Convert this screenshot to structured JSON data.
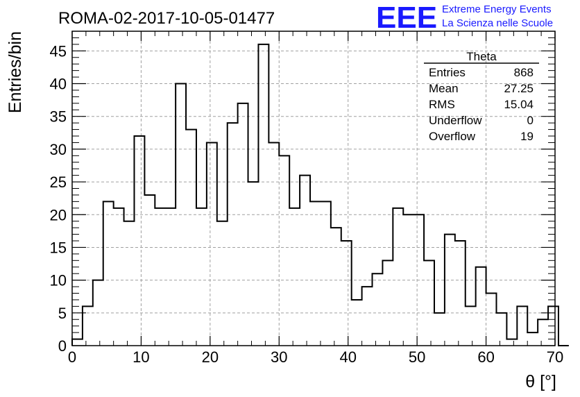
{
  "header": {
    "title": "ROMA-02-2017-10-05-01477",
    "logo_text": "EEE",
    "logo_line1": "Extreme Energy Events",
    "logo_line2": "La Scienza nelle Scuole"
  },
  "colors": {
    "logo": "#1a1aff",
    "histogram": "#000000",
    "grid": "#a0a0a0",
    "background": "#ffffff"
  },
  "stats": {
    "name": "Theta",
    "rows": [
      {
        "label": "Entries",
        "value": "868"
      },
      {
        "label": "Mean",
        "value": "27.25"
      },
      {
        "label": "RMS",
        "value": "15.04"
      },
      {
        "label": "Underflow",
        "value": "0"
      },
      {
        "label": "Overflow",
        "value": "19"
      }
    ]
  },
  "chart_data": {
    "type": "histogram",
    "title": "ROMA-02-2017-10-05-01477",
    "xlabel": "θ [°]",
    "ylabel": "Entries/bin",
    "xlim": [
      0,
      70
    ],
    "ylim": [
      0,
      48
    ],
    "x_ticks": [
      0,
      10,
      20,
      30,
      40,
      50,
      60,
      70
    ],
    "y_ticks": [
      0,
      5,
      10,
      15,
      20,
      25,
      30,
      35,
      40,
      45
    ],
    "grid": true,
    "bin_width": 1.5,
    "bin_start": 0,
    "values": [
      1,
      6,
      10,
      22,
      21,
      19,
      32,
      23,
      21,
      21,
      40,
      33,
      21,
      31,
      19,
      34,
      37,
      25,
      46,
      31,
      29,
      21,
      26,
      22,
      22,
      18,
      16,
      7,
      9,
      11,
      13,
      21,
      20,
      20,
      13,
      5,
      17,
      16,
      6,
      12,
      8,
      5,
      1,
      6,
      2,
      4,
      6,
      0
    ]
  }
}
